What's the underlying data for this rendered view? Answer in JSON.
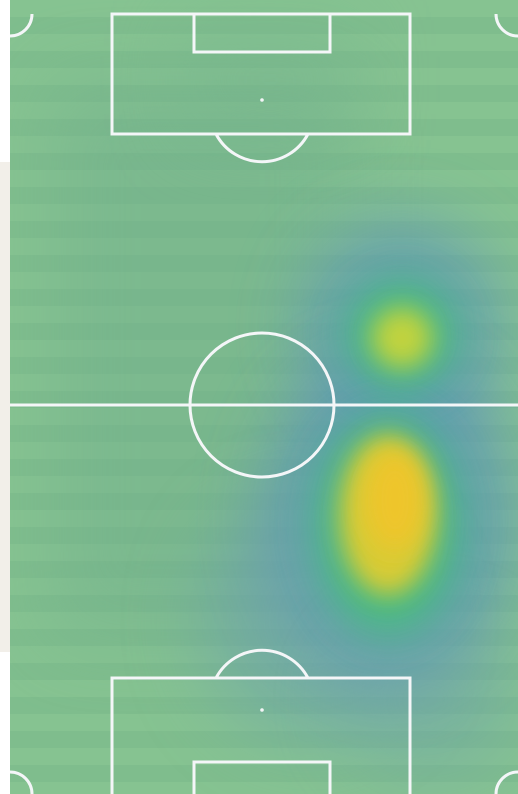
{
  "pitch": {
    "grass_light": "#86c391",
    "grass_dark": "#7bb98a",
    "line_color": "#f4f6f8",
    "stripes": true
  },
  "heatmap": {
    "colors": [
      "#6aa9a0",
      "#5f95b8",
      "#46c07a",
      "#c8d43a",
      "#f1c52a"
    ],
    "hotspots": [
      {
        "label": "upper-right",
        "intensity": 0.65
      },
      {
        "label": "lower-right",
        "intensity": 1.0
      }
    ]
  }
}
